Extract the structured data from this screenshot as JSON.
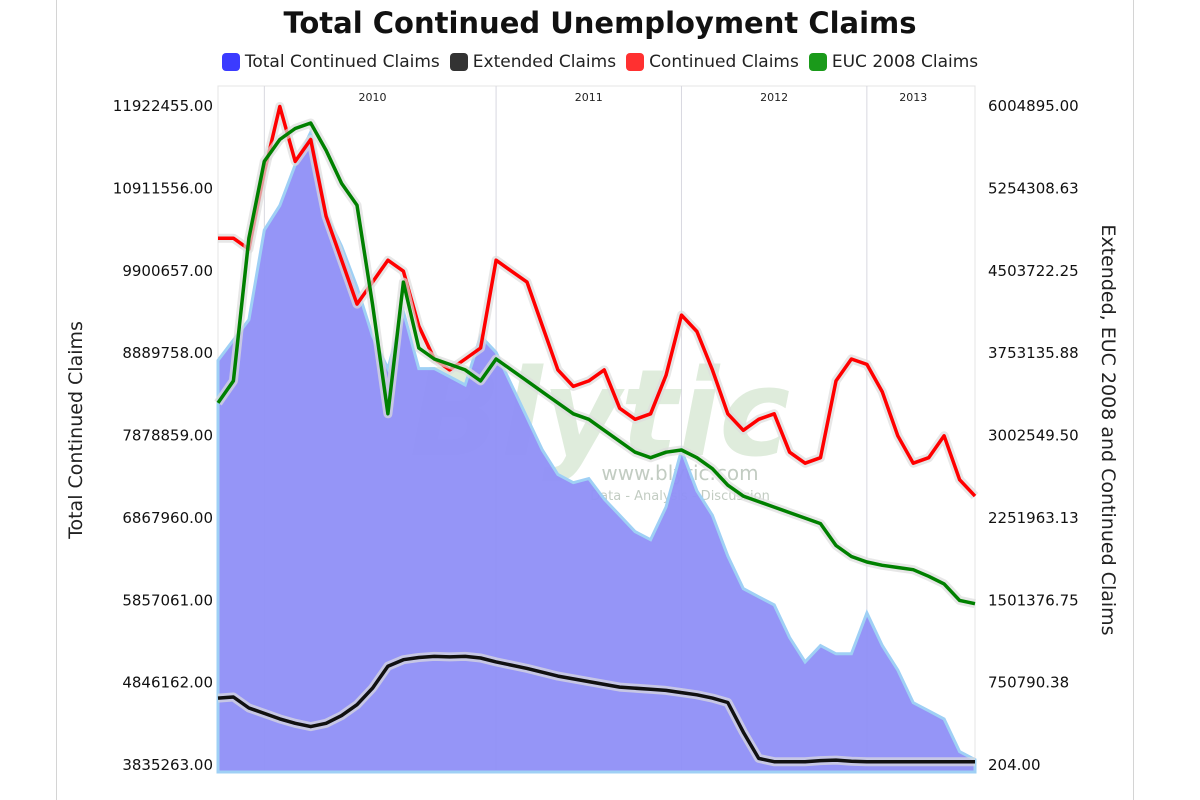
{
  "chart_data": {
    "type": "area",
    "title": "Total Continued Unemployment Claims",
    "ylabel_left": "Total Continued Claims",
    "ylabel_right": "Extended, EUC 2008 and Continued Claims",
    "legend_position": "top-center",
    "grid": true,
    "years": [
      "2010",
      "2011",
      "2012",
      "2013"
    ],
    "y_left": {
      "range": [
        3835263.0,
        11922455.0
      ],
      "ticks": [
        "11922455.00",
        "10911556.00",
        "9900657.00",
        "8889758.00",
        "7878859.00",
        "6867960.00",
        "5857061.00",
        "4846162.00",
        "3835263.00"
      ]
    },
    "y_right": {
      "range": [
        204.0,
        6004895.0
      ],
      "ticks": [
        "6004895.00",
        "5254308.63",
        "4503722.25",
        "3753135.88",
        "3002549.50",
        "2251963.13",
        "1501376.75",
        "750790.38",
        "204.00"
      ]
    },
    "x_range": [
      "2009-07",
      "2013-08"
    ],
    "series": [
      {
        "name": "Total Continued Claims",
        "axis": "left",
        "color": "#4444ff",
        "points": [
          [
            "2009-07",
            8800000
          ],
          [
            "2009-09",
            9300000
          ],
          [
            "2009-10",
            10400000
          ],
          [
            "2009-11",
            10700000
          ],
          [
            "2009-12",
            11200000
          ],
          [
            "2010-01",
            11600000
          ],
          [
            "2010-02",
            10600000
          ],
          [
            "2010-03",
            10200000
          ],
          [
            "2010-04",
            9700000
          ],
          [
            "2010-05",
            9100000
          ],
          [
            "2010-06",
            8700000
          ],
          [
            "2010-07",
            9400000
          ],
          [
            "2010-08",
            8700000
          ],
          [
            "2010-09",
            8700000
          ],
          [
            "2010-10",
            8600000
          ],
          [
            "2010-11",
            8500000
          ],
          [
            "2010-12",
            9100000
          ],
          [
            "2011-01",
            8900000
          ],
          [
            "2011-02",
            8500000
          ],
          [
            "2011-03",
            8100000
          ],
          [
            "2011-04",
            7700000
          ],
          [
            "2011-05",
            7400000
          ],
          [
            "2011-06",
            7300000
          ],
          [
            "2011-07",
            7350000
          ],
          [
            "2011-08",
            7100000
          ],
          [
            "2011-09",
            6900000
          ],
          [
            "2011-10",
            6700000
          ],
          [
            "2011-11",
            6600000
          ],
          [
            "2011-12",
            7000000
          ],
          [
            "2012-01",
            7700000
          ],
          [
            "2012-02",
            7200000
          ],
          [
            "2012-03",
            6900000
          ],
          [
            "2012-04",
            6400000
          ],
          [
            "2012-05",
            6000000
          ],
          [
            "2012-06",
            5900000
          ],
          [
            "2012-07",
            5800000
          ],
          [
            "2012-08",
            5400000
          ],
          [
            "2012-09",
            5100000
          ],
          [
            "2012-10",
            5300000
          ],
          [
            "2012-11",
            5200000
          ],
          [
            "2012-12",
            5200000
          ],
          [
            "2013-01",
            5700000
          ],
          [
            "2013-02",
            5300000
          ],
          [
            "2013-03",
            5000000
          ],
          [
            "2013-04",
            4600000
          ],
          [
            "2013-05",
            4500000
          ],
          [
            "2013-06",
            4400000
          ],
          [
            "2013-07",
            4000000
          ],
          [
            "2013-08",
            3900000
          ]
        ]
      },
      {
        "name": "Extended Claims",
        "axis": "right",
        "color": "#111111",
        "points": [
          [
            "2009-07",
            610000
          ],
          [
            "2009-08",
            620000
          ],
          [
            "2009-09",
            520000
          ],
          [
            "2009-10",
            470000
          ],
          [
            "2009-11",
            420000
          ],
          [
            "2009-12",
            380000
          ],
          [
            "2010-01",
            350000
          ],
          [
            "2010-02",
            380000
          ],
          [
            "2010-03",
            450000
          ],
          [
            "2010-04",
            550000
          ],
          [
            "2010-05",
            700000
          ],
          [
            "2010-06",
            900000
          ],
          [
            "2010-07",
            960000
          ],
          [
            "2010-08",
            980000
          ],
          [
            "2010-09",
            990000
          ],
          [
            "2010-10",
            985000
          ],
          [
            "2010-11",
            990000
          ],
          [
            "2010-12",
            975000
          ],
          [
            "2011-01",
            940000
          ],
          [
            "2011-03",
            880000
          ],
          [
            "2011-05",
            810000
          ],
          [
            "2011-07",
            760000
          ],
          [
            "2011-09",
            710000
          ],
          [
            "2011-11",
            690000
          ],
          [
            "2011-12",
            680000
          ],
          [
            "2012-01",
            660000
          ],
          [
            "2012-02",
            640000
          ],
          [
            "2012-03",
            610000
          ],
          [
            "2012-04",
            570000
          ],
          [
            "2012-05",
            300000
          ],
          [
            "2012-06",
            60000
          ],
          [
            "2012-07",
            30000
          ],
          [
            "2012-09",
            30000
          ],
          [
            "2012-10",
            40000
          ],
          [
            "2012-11",
            45000
          ],
          [
            "2012-12",
            35000
          ],
          [
            "2013-01",
            30000
          ],
          [
            "2013-08",
            30000
          ]
        ]
      },
      {
        "name": "Continued Claims",
        "axis": "right",
        "color": "#ff0000",
        "points": [
          [
            "2009-07",
            4800000
          ],
          [
            "2009-08",
            4800000
          ],
          [
            "2009-09",
            4700000
          ],
          [
            "2009-10",
            5400000
          ],
          [
            "2009-11",
            6000000
          ],
          [
            "2009-12",
            5500000
          ],
          [
            "2010-01",
            5700000
          ],
          [
            "2010-02",
            5000000
          ],
          [
            "2010-03",
            4600000
          ],
          [
            "2010-04",
            4200000
          ],
          [
            "2010-05",
            4400000
          ],
          [
            "2010-06",
            4600000
          ],
          [
            "2010-07",
            4500000
          ],
          [
            "2010-08",
            4000000
          ],
          [
            "2010-09",
            3700000
          ],
          [
            "2010-10",
            3600000
          ],
          [
            "2010-11",
            3700000
          ],
          [
            "2010-12",
            3800000
          ],
          [
            "2011-01",
            4600000
          ],
          [
            "2011-02",
            4500000
          ],
          [
            "2011-03",
            4400000
          ],
          [
            "2011-04",
            4000000
          ],
          [
            "2011-05",
            3600000
          ],
          [
            "2011-06",
            3450000
          ],
          [
            "2011-07",
            3500000
          ],
          [
            "2011-08",
            3600000
          ],
          [
            "2011-09",
            3250000
          ],
          [
            "2011-10",
            3150000
          ],
          [
            "2011-11",
            3200000
          ],
          [
            "2011-12",
            3550000
          ],
          [
            "2012-01",
            4100000
          ],
          [
            "2012-02",
            3950000
          ],
          [
            "2012-03",
            3600000
          ],
          [
            "2012-04",
            3200000
          ],
          [
            "2012-05",
            3050000
          ],
          [
            "2012-06",
            3150000
          ],
          [
            "2012-07",
            3200000
          ],
          [
            "2012-08",
            2850000
          ],
          [
            "2012-09",
            2750000
          ],
          [
            "2012-10",
            2800000
          ],
          [
            "2012-11",
            3500000
          ],
          [
            "2012-12",
            3700000
          ],
          [
            "2013-01",
            3650000
          ],
          [
            "2013-02",
            3400000
          ],
          [
            "2013-03",
            3000000
          ],
          [
            "2013-04",
            2750000
          ],
          [
            "2013-05",
            2800000
          ],
          [
            "2013-06",
            3000000
          ],
          [
            "2013-07",
            2600000
          ],
          [
            "2013-08",
            2450000
          ]
        ]
      },
      {
        "name": "EUC 2008 Claims",
        "axis": "right",
        "color": "#008000",
        "points": [
          [
            "2009-07",
            3300000
          ],
          [
            "2009-08",
            3500000
          ],
          [
            "2009-09",
            4800000
          ],
          [
            "2009-10",
            5500000
          ],
          [
            "2009-11",
            5700000
          ],
          [
            "2009-12",
            5800000
          ],
          [
            "2010-01",
            5850000
          ],
          [
            "2010-02",
            5600000
          ],
          [
            "2010-03",
            5300000
          ],
          [
            "2010-04",
            5100000
          ],
          [
            "2010-05",
            4200000
          ],
          [
            "2010-06",
            3200000
          ],
          [
            "2010-07",
            4400000
          ],
          [
            "2010-08",
            3800000
          ],
          [
            "2010-09",
            3700000
          ],
          [
            "2010-10",
            3650000
          ],
          [
            "2010-11",
            3600000
          ],
          [
            "2010-12",
            3500000
          ],
          [
            "2011-01",
            3700000
          ],
          [
            "2011-02",
            3600000
          ],
          [
            "2011-03",
            3500000
          ],
          [
            "2011-04",
            3400000
          ],
          [
            "2011-05",
            3300000
          ],
          [
            "2011-06",
            3200000
          ],
          [
            "2011-07",
            3150000
          ],
          [
            "2011-08",
            3050000
          ],
          [
            "2011-09",
            2950000
          ],
          [
            "2011-10",
            2850000
          ],
          [
            "2011-11",
            2800000
          ],
          [
            "2011-12",
            2850000
          ],
          [
            "2012-01",
            2870000
          ],
          [
            "2012-02",
            2800000
          ],
          [
            "2012-03",
            2700000
          ],
          [
            "2012-04",
            2550000
          ],
          [
            "2012-05",
            2450000
          ],
          [
            "2012-06",
            2400000
          ],
          [
            "2012-07",
            2350000
          ],
          [
            "2012-08",
            2300000
          ],
          [
            "2012-09",
            2250000
          ],
          [
            "2012-10",
            2200000
          ],
          [
            "2012-11",
            2000000
          ],
          [
            "2012-12",
            1900000
          ],
          [
            "2013-01",
            1850000
          ],
          [
            "2013-02",
            1820000
          ],
          [
            "2013-03",
            1800000
          ],
          [
            "2013-04",
            1780000
          ],
          [
            "2013-05",
            1720000
          ],
          [
            "2013-06",
            1650000
          ],
          [
            "2013-07",
            1500000
          ],
          [
            "2013-08",
            1470000
          ]
        ]
      }
    ],
    "watermark": {
      "logo": "Blytic",
      "url": "www.blytic.com",
      "tagline": "Data - Analysis - Discussion"
    }
  }
}
